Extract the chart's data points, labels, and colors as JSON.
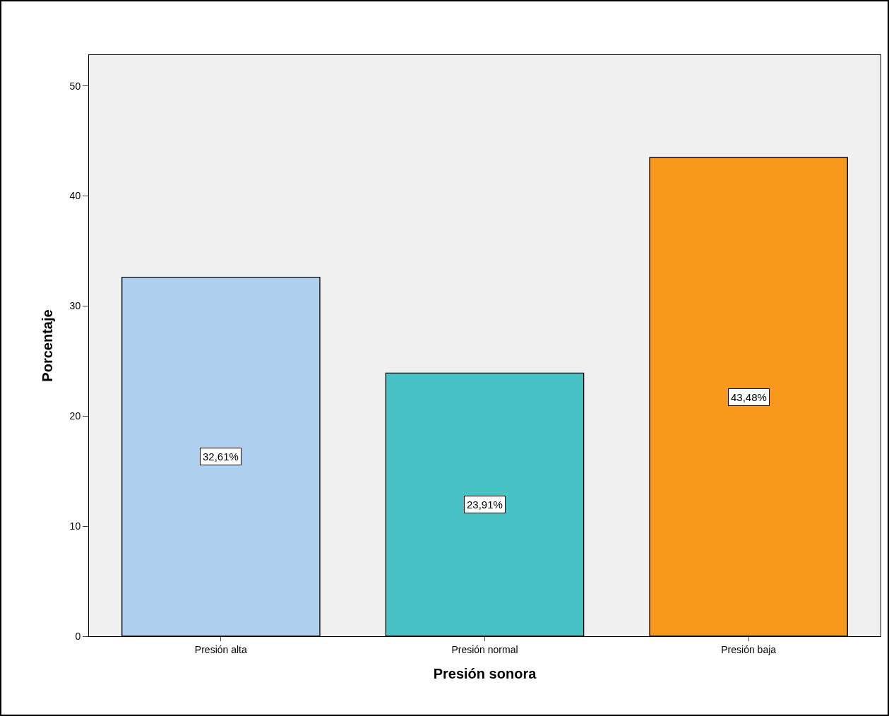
{
  "chart_data": {
    "type": "bar",
    "xlabel": "Presión sonora",
    "ylabel": "Porcentaje",
    "categories": [
      "Presión alta",
      "Presión normal",
      "Presión baja"
    ],
    "values": [
      32.61,
      23.91,
      43.48
    ],
    "colors": [
      "#aed0ee",
      "#48c2c5",
      "#f8981d"
    ],
    "value_labels": [
      "32,61%",
      "23,91%",
      "43,48%"
    ],
    "ylim": [
      0,
      52.8
    ],
    "yticks": [
      0,
      10,
      20,
      30,
      40,
      50
    ],
    "grid": false
  }
}
